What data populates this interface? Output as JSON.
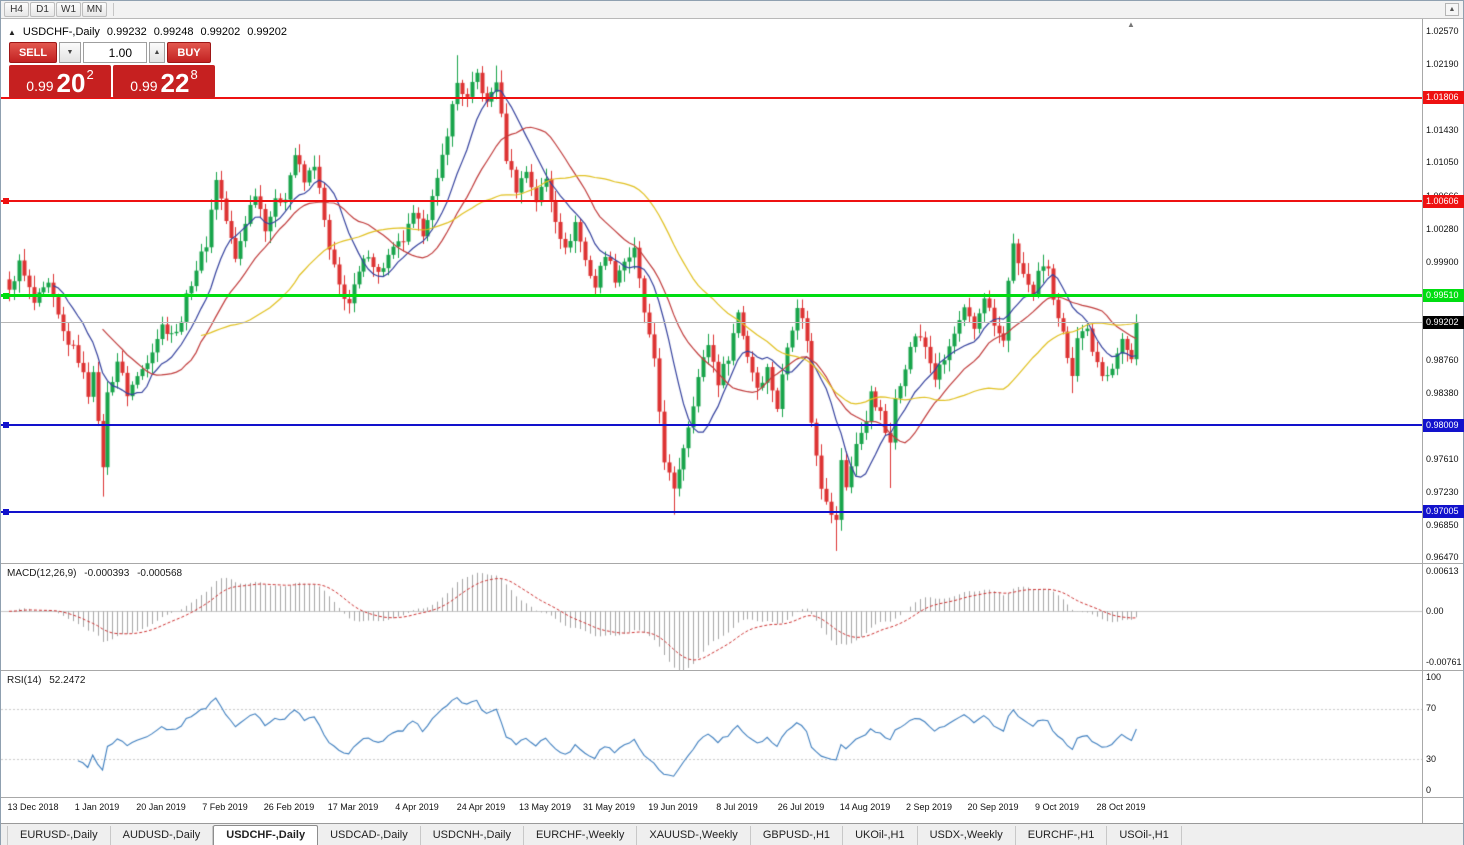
{
  "colors": {
    "candle_up": "#18a44b",
    "candle_down": "#dd3333",
    "ma_fast": "#35429e",
    "ma_mid": "#c03c3c",
    "ma_slow": "#e0c020",
    "hline_red": "#ee1111",
    "hline_green": "#00dd11",
    "hline_blue": "#1212cc",
    "current_price_bg": "#000000",
    "macd_hist": "#a6a6a6",
    "macd_signal": "#cc3333",
    "rsi_line": "#3f7fbf"
  },
  "toolbar": {
    "timeframes": [
      "H4",
      "D1",
      "W1",
      "MN"
    ],
    "scroll_up_icon": "▲"
  },
  "chart": {
    "header": {
      "collapse_icon": "▲",
      "title": "USDCHF-,Daily",
      "open": "0.99232",
      "high": "0.99248",
      "low": "0.99202",
      "close": "0.99202"
    },
    "trade_panel": {
      "sell_label": "SELL",
      "buy_label": "BUY",
      "volume": "1.00",
      "dropdown_icon": "▼",
      "spin_up_icon": "▲",
      "sell_price_big": "0.99",
      "sell_price_pips": "20",
      "sell_price_sup": "2",
      "buy_price_big": "0.99",
      "buy_price_pips": "22",
      "buy_price_sup": "8"
    },
    "shift_marker_icon": "▲",
    "y_axis_ticks": [
      "1.02570",
      "1.02190",
      "1.01430",
      "1.01050",
      "1.00666",
      "1.00280",
      "0.99900",
      "0.98760",
      "0.98380",
      "0.97610",
      "0.97230",
      "0.96850",
      "0.96470"
    ],
    "price_lines": [
      {
        "label": "1.01806",
        "price": 1.01806,
        "color": "red",
        "thickness": 2,
        "handle": false
      },
      {
        "label": "1.00606",
        "price": 1.00606,
        "color": "red",
        "thickness": 2,
        "handle": true
      },
      {
        "label": "0.99510",
        "price": 0.9951,
        "color": "green",
        "thickness": 3,
        "handle": true
      },
      {
        "label": "0.98009",
        "price": 0.98009,
        "color": "blue",
        "thickness": 2,
        "handle": true
      },
      {
        "label": "0.97005",
        "price": 0.97005,
        "color": "blue",
        "thickness": 2,
        "handle": true
      }
    ],
    "current_price": 0.99202,
    "current_price_label": "0.99202",
    "x_axis_labels": [
      "13 Dec 2018",
      "1 Jan 2019",
      "20 Jan 2019",
      "7 Feb 2019",
      "26 Feb 2019",
      "17 Mar 2019",
      "4 Apr 2019",
      "24 Apr 2019",
      "13 May 2019",
      "31 May 2019",
      "19 Jun 2019",
      "8 Jul 2019",
      "26 Jul 2019",
      "14 Aug 2019",
      "2 Sep 2019",
      "20 Sep 2019",
      "9 Oct 2019",
      "28 Oct 2019"
    ]
  },
  "chart_data": {
    "type": "candlestick",
    "symbol": "USDCHF-",
    "timeframe": "Daily",
    "title": "USDCHF-,Daily",
    "current_ohlc": {
      "open": 0.99232,
      "high": 0.99248,
      "low": 0.99202,
      "close": 0.99202
    },
    "y_range": [
      0.9641,
      1.0272
    ],
    "candle_count": 230,
    "noise_amplitude": 0.0013,
    "wick_amplitude": 0.0011,
    "close_anchors": [
      [
        0,
        0.9958
      ],
      [
        2,
        0.9988
      ],
      [
        5,
        0.9942
      ],
      [
        8,
        0.9962
      ],
      [
        11,
        0.9908
      ],
      [
        14,
        0.9878
      ],
      [
        16,
        0.9838
      ],
      [
        17,
        0.9868
      ],
      [
        18,
        0.98
      ],
      [
        19,
        0.9756
      ],
      [
        20,
        0.9836
      ],
      [
        22,
        0.9876
      ],
      [
        24,
        0.9838
      ],
      [
        27,
        0.9866
      ],
      [
        31,
        0.9916
      ],
      [
        34,
        0.9906
      ],
      [
        37,
        0.9968
      ],
      [
        40,
        1.0012
      ],
      [
        42,
        1.0088
      ],
      [
        44,
        1.0038
      ],
      [
        46,
        0.9992
      ],
      [
        48,
        1.0038
      ],
      [
        50,
        1.0072
      ],
      [
        52,
        1.0032
      ],
      [
        54,
        1.0058
      ],
      [
        56,
        1.0068
      ],
      [
        58,
        1.0115
      ],
      [
        60,
        1.0082
      ],
      [
        62,
        1.0105
      ],
      [
        63,
        1.0072
      ],
      [
        65,
        1.0002
      ],
      [
        67,
        0.9962
      ],
      [
        69,
        0.9942
      ],
      [
        71,
        0.9976
      ],
      [
        73,
        1.0002
      ],
      [
        75,
        0.9976
      ],
      [
        77,
        0.9996
      ],
      [
        80,
        1.0016
      ],
      [
        82,
        1.0042
      ],
      [
        84,
        1.0026
      ],
      [
        87,
        1.0082
      ],
      [
        89,
        1.0142
      ],
      [
        91,
        1.0198
      ],
      [
        93,
        1.0178
      ],
      [
        95,
        1.0208
      ],
      [
        97,
        1.0172
      ],
      [
        99,
        1.0202
      ],
      [
        101,
        1.0112
      ],
      [
        103,
        1.0076
      ],
      [
        105,
        1.0096
      ],
      [
        107,
        1.0062
      ],
      [
        109,
        1.0086
      ],
      [
        111,
        1.0042
      ],
      [
        113,
        1.0002
      ],
      [
        115,
        1.0036
      ],
      [
        117,
        0.9992
      ],
      [
        119,
        0.9962
      ],
      [
        121,
        1.0002
      ],
      [
        123,
        0.9972
      ],
      [
        125,
        0.9992
      ],
      [
        127,
        1.0002
      ],
      [
        129,
        0.9932
      ],
      [
        131,
        0.9872
      ],
      [
        133,
        0.9762
      ],
      [
        135,
        0.9722
      ],
      [
        136,
        0.9752
      ],
      [
        138,
        0.9802
      ],
      [
        140,
        0.9856
      ],
      [
        142,
        0.9896
      ],
      [
        144,
        0.9852
      ],
      [
        146,
        0.9882
      ],
      [
        148,
        0.9932
      ],
      [
        150,
        0.9882
      ],
      [
        152,
        0.9846
      ],
      [
        154,
        0.9866
      ],
      [
        156,
        0.9822
      ],
      [
        158,
        0.9892
      ],
      [
        160,
        0.9942
      ],
      [
        162,
        0.9902
      ],
      [
        163,
        0.9802
      ],
      [
        165,
        0.9732
      ],
      [
        167,
        0.9702
      ],
      [
        168,
        0.9688
      ],
      [
        169,
        0.9762
      ],
      [
        170,
        0.9726
      ],
      [
        172,
        0.9782
      ],
      [
        174,
        0.9802
      ],
      [
        175,
        0.9842
      ],
      [
        177,
        0.9812
      ],
      [
        179,
        0.9776
      ],
      [
        180,
        0.9832
      ],
      [
        182,
        0.9872
      ],
      [
        184,
        0.9906
      ],
      [
        186,
        0.9892
      ],
      [
        188,
        0.9856
      ],
      [
        190,
        0.9876
      ],
      [
        192,
        0.9906
      ],
      [
        194,
        0.9932
      ],
      [
        196,
        0.9912
      ],
      [
        198,
        0.9952
      ],
      [
        200,
        0.9916
      ],
      [
        202,
        0.9896
      ],
      [
        203,
        0.9972
      ],
      [
        204,
        1.0006
      ],
      [
        206,
        0.9976
      ],
      [
        208,
        0.9946
      ],
      [
        209,
        0.9976
      ],
      [
        211,
        0.9986
      ],
      [
        212,
        0.9952
      ],
      [
        214,
        0.9906
      ],
      [
        216,
        0.9862
      ],
      [
        217,
        0.9902
      ],
      [
        219,
        0.9916
      ],
      [
        220,
        0.9882
      ],
      [
        222,
        0.9856
      ],
      [
        224,
        0.9872
      ],
      [
        226,
        0.9896
      ],
      [
        228,
        0.9882
      ],
      [
        229,
        0.99202
      ]
    ],
    "special_wicks": [
      {
        "i": 19,
        "low": 0.9718
      },
      {
        "i": 91,
        "high": 1.023
      },
      {
        "i": 99,
        "high": 1.0218
      },
      {
        "i": 135,
        "low": 0.9697
      },
      {
        "i": 168,
        "low": 0.9655
      },
      {
        "i": 179,
        "low": 0.9728
      },
      {
        "i": 216,
        "low": 0.9838
      }
    ],
    "moving_averages": [
      {
        "period": 10,
        "color_key": "ma_fast"
      },
      {
        "period": 20,
        "color_key": "ma_mid"
      },
      {
        "period": 40,
        "color_key": "ma_slow"
      }
    ],
    "horizontal_levels": [
      1.01806,
      1.00606,
      0.9951,
      0.98009,
      0.97005
    ],
    "indicators": [
      {
        "name": "MACD",
        "params": [
          12,
          26,
          9
        ],
        "range": [
          -0.00761,
          0.00613
        ]
      },
      {
        "name": "RSI",
        "params": [
          14
        ],
        "range": [
          0,
          100
        ],
        "levels": [
          30,
          70
        ]
      }
    ]
  },
  "macd_panel": {
    "name": "MACD(12,26,9)",
    "value_main": "-0.000393",
    "value_signal": "-0.000568",
    "axis_top": "0.00613",
    "axis_zero": "0.00",
    "axis_bottom": "-0.00761"
  },
  "rsi_panel": {
    "name": "RSI(14)",
    "value": "52.2472",
    "axis": [
      "100",
      "70",
      "30",
      "0"
    ],
    "levels": [
      70,
      30
    ]
  },
  "tabs": [
    {
      "label": "EURUSD-,Daily",
      "active": false
    },
    {
      "label": "AUDUSD-,Daily",
      "active": false
    },
    {
      "label": "USDCHF-,Daily",
      "active": true
    },
    {
      "label": "USDCAD-,Daily",
      "active": false
    },
    {
      "label": "USDCNH-,Daily",
      "active": false
    },
    {
      "label": "EURCHF-,Weekly",
      "active": false
    },
    {
      "label": "XAUUSD-,Weekly",
      "active": false
    },
    {
      "label": "GBPUSD-,H1",
      "active": false
    },
    {
      "label": "UKOil-,H1",
      "active": false
    },
    {
      "label": "USDX-,Weekly",
      "active": false
    },
    {
      "label": "EURCHF-,H1",
      "active": false
    },
    {
      "label": "USOil-,H1",
      "active": false
    }
  ]
}
